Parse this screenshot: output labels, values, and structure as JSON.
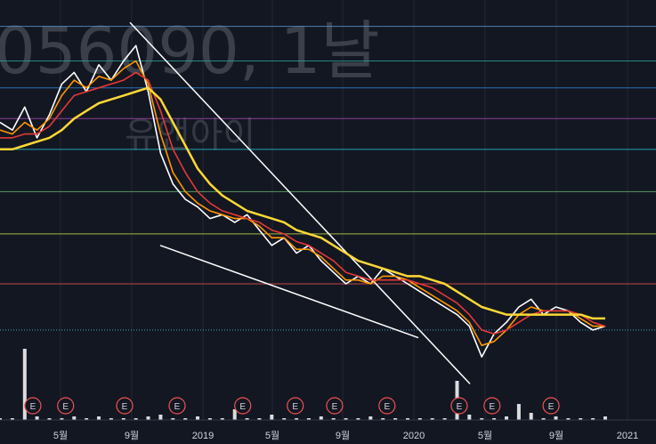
{
  "watermark": {
    "symbol": "056090, 1날",
    "name": "유앤아이"
  },
  "chart_data": {
    "type": "line",
    "x_ticks": [
      "5월",
      "9월",
      "2019",
      "5월",
      "9월",
      "2020",
      "5월",
      "9월",
      "2021"
    ],
    "grid": true,
    "ylim": [
      0,
      100
    ],
    "horizontal_levels": [
      {
        "y": 95,
        "color": "#5b9bd5"
      },
      {
        "y": 86,
        "color": "#26a69a"
      },
      {
        "y": 79,
        "color": "#2e86de"
      },
      {
        "y": 71,
        "color": "#ab47bc"
      },
      {
        "y": 63,
        "color": "#26c6da"
      },
      {
        "y": 52,
        "color": "#66bb6a"
      },
      {
        "y": 41,
        "color": "#c6e14a"
      },
      {
        "y": 28,
        "color": "#ef5350"
      },
      {
        "y": 16,
        "color": "#4fc3f7",
        "dotted": true
      }
    ],
    "series": [
      {
        "color": "#ffffff",
        "values": [
          70,
          68,
          74,
          66,
          72,
          80,
          83,
          78,
          85,
          81,
          86,
          90,
          78,
          62,
          54,
          50,
          48,
          45,
          46,
          44,
          46,
          42,
          38,
          40,
          36,
          38,
          34,
          31,
          28,
          30,
          28,
          32,
          30,
          28,
          26,
          24,
          22,
          20,
          17,
          9,
          15,
          18,
          22,
          24,
          20,
          22,
          21,
          18,
          16,
          17
        ]
      },
      {
        "color": "#ff9800",
        "values": [
          68,
          67,
          70,
          68,
          71,
          77,
          81,
          79,
          82,
          81,
          84,
          86,
          80,
          67,
          57,
          52,
          49,
          47,
          46,
          45,
          45,
          43,
          40,
          40,
          37,
          37,
          35,
          32,
          29,
          29,
          28,
          30,
          30,
          29,
          27,
          25,
          23,
          21,
          18,
          12,
          13,
          16,
          20,
          22,
          21,
          21,
          21,
          19,
          17,
          17
        ]
      },
      {
        "color": "#e53935",
        "values": [
          66,
          66,
          67,
          67,
          69,
          73,
          77,
          78,
          79,
          80,
          81,
          83,
          81,
          73,
          63,
          57,
          52,
          49,
          47,
          46,
          45,
          44,
          42,
          41,
          39,
          38,
          36,
          34,
          31,
          30,
          29,
          29,
          29,
          29,
          28,
          27,
          25,
          23,
          20,
          16,
          15,
          16,
          18,
          20,
          21,
          21,
          21,
          20,
          18,
          17
        ]
      },
      {
        "color": "#fdd835",
        "values": [
          63,
          63,
          64,
          65,
          66,
          68,
          71,
          73,
          75,
          76,
          77,
          78,
          79,
          76,
          70,
          64,
          58,
          54,
          51,
          49,
          47,
          46,
          45,
          44,
          42,
          41,
          40,
          38,
          36,
          34,
          33,
          32,
          31,
          30,
          30,
          29,
          28,
          26,
          24,
          22,
          21,
          20,
          20,
          20,
          20,
          20,
          20,
          20,
          19,
          19
        ]
      }
    ],
    "volume": [
      1,
      1,
      40,
      2,
      1,
      1,
      2,
      1,
      2,
      1,
      1,
      1,
      2,
      3,
      1,
      1,
      2,
      1,
      1,
      6,
      1,
      1,
      3,
      1,
      1,
      1,
      2,
      1,
      1,
      1,
      2,
      1,
      1,
      1,
      1,
      1,
      1,
      22,
      3,
      1,
      1,
      2,
      9,
      4,
      1,
      2,
      1,
      1,
      1,
      2
    ],
    "annotations": {
      "earnings_marker": "E",
      "earnings_positions": [
        0.05,
        0.1,
        0.19,
        0.27,
        0.37,
        0.45,
        0.51,
        0.59,
        0.7,
        0.75,
        0.84
      ]
    }
  }
}
